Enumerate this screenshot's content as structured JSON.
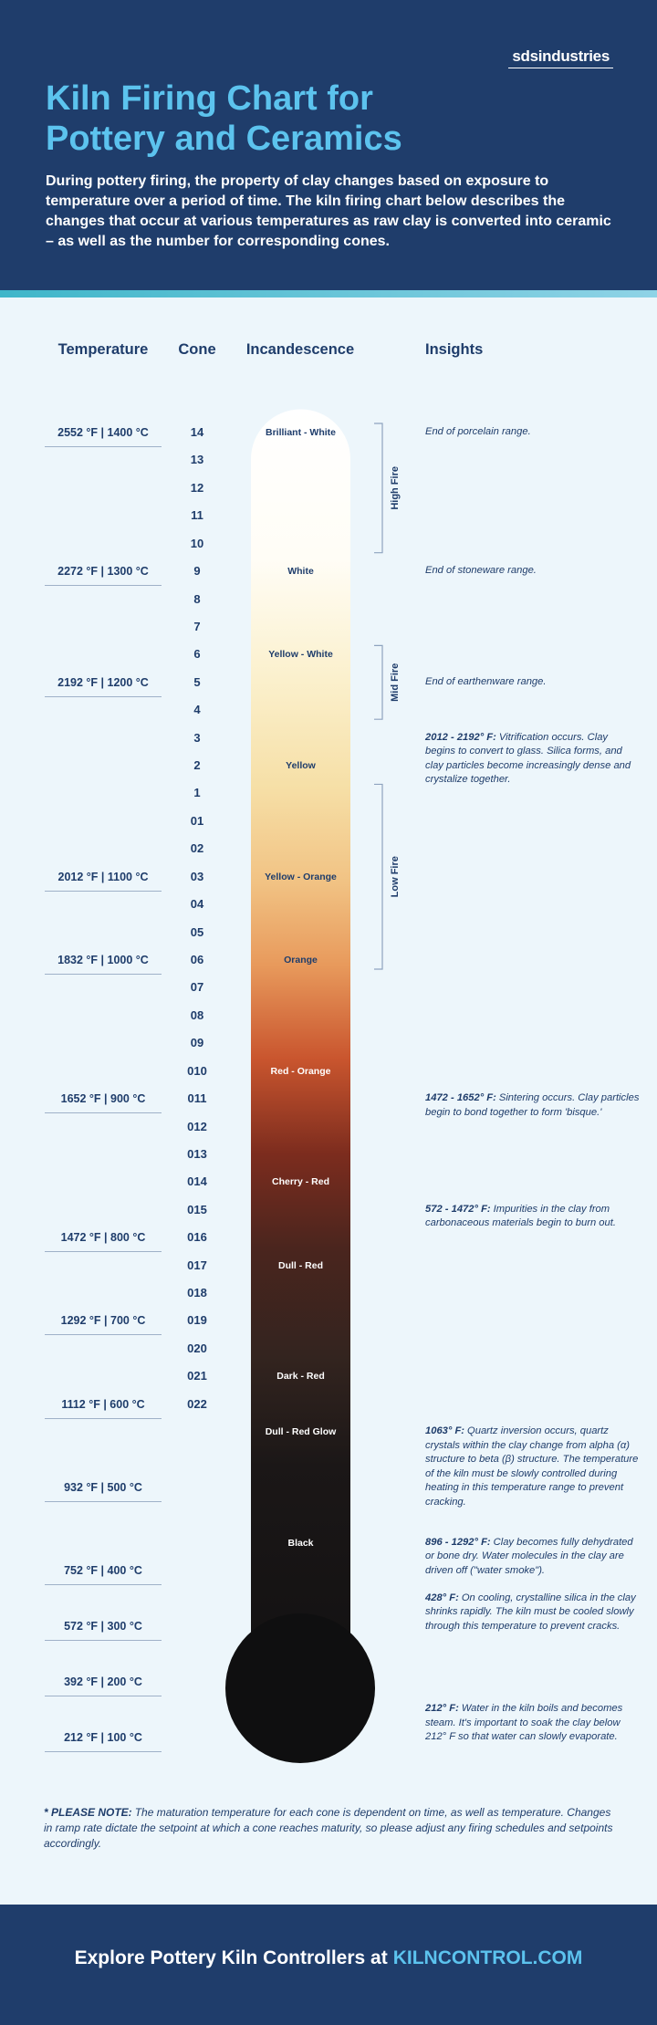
{
  "header": {
    "brand": "sdsindustries",
    "title_lines": [
      "Kiln Firing Chart for",
      "Pottery and Ceramics"
    ],
    "intro": "During pottery firing, the property of clay changes based on exposure to temperature over a period of time. The kiln firing chart below describes the changes that occur at various temperatures as raw clay is converted into ceramic – as well as the number for corresponding cones."
  },
  "columns": [
    "Temperature",
    "Cone",
    "Incandescence",
    "Insights"
  ],
  "rows": [
    {
      "cone": "14",
      "temperature": "2552 °F | 1400 °C",
      "incandescence": "Brilliant - White",
      "insight": "End of porcelain range."
    },
    {
      "cone": "13"
    },
    {
      "cone": "12"
    },
    {
      "cone": "11"
    },
    {
      "cone": "10"
    },
    {
      "cone": "9",
      "temperature": "2272 °F | 1300 °C",
      "incandescence": "White",
      "insight": "End of stoneware range."
    },
    {
      "cone": "8"
    },
    {
      "cone": "7"
    },
    {
      "cone": "6",
      "incandescence": "Yellow - White"
    },
    {
      "cone": "5",
      "temperature": "2192 °F | 1200 °C",
      "insight": "End of earthenware range."
    },
    {
      "cone": "4"
    },
    {
      "cone": "3",
      "insight_lead": "2012 - 2192° F:",
      "insight": "Vitrification occurs. Clay begins to convert to glass. Silica forms, and clay particles become increasingly dense and crystalize together."
    },
    {
      "cone": "2",
      "incandescence": "Yellow"
    },
    {
      "cone": "1"
    },
    {
      "cone": "01"
    },
    {
      "cone": "02"
    },
    {
      "cone": "03",
      "temperature": "2012 °F | 1100 °C",
      "incandescence": "Yellow - Orange"
    },
    {
      "cone": "04"
    },
    {
      "cone": "05"
    },
    {
      "cone": "06",
      "temperature": "1832 °F | 1000 °C",
      "incandescence": "Orange"
    },
    {
      "cone": "07"
    },
    {
      "cone": "08"
    },
    {
      "cone": "09"
    },
    {
      "cone": "010",
      "incandescence": "Red - Orange"
    },
    {
      "cone": "011",
      "temperature": "1652 °F | 900 °C",
      "insight_lead": "1472 - 1652° F:",
      "insight": "Sintering occurs. Clay particles begin to bond together to form 'bisque.'"
    },
    {
      "cone": "012"
    },
    {
      "cone": "013"
    },
    {
      "cone": "014",
      "incandescence": "Cherry - Red"
    },
    {
      "cone": "015",
      "insight_lead": "572 - 1472° F:",
      "insight": "Impurities in the clay from carbonaceous materials begin to burn out."
    },
    {
      "cone": "016",
      "temperature": "1472 °F | 800 °C"
    },
    {
      "cone": "017",
      "incandescence": "Dull - Red"
    },
    {
      "cone": "018"
    },
    {
      "cone": "019",
      "temperature": "1292 °F | 700 °C"
    },
    {
      "cone": "020"
    },
    {
      "cone": "021",
      "incandescence": "Dark - Red"
    },
    {
      "cone": "022",
      "temperature": "1112 °F | 600 °C"
    },
    {
      "incandescence": "Dull - Red Glow",
      "insight_lead": "1063° F:",
      "insight": "Quartz inversion occurs, quartz crystals within the clay change from alpha (α) structure to beta (β) structure. The temperature of the kiln must be slowly controlled during heating in this temperature range to prevent cracking."
    },
    {},
    {
      "temperature": "932 °F | 500 °C"
    },
    {},
    {
      "incandescence": "Black",
      "insight_lead": "896 - 1292° F:",
      "insight": "Clay becomes fully dehydrated or bone dry. Water molecules in the clay are driven off (\"water smoke\")."
    },
    {
      "temperature": "752 °F | 400 °C"
    },
    {
      "insight_lead": "428° F:",
      "insight": "On cooling, crystalline silica in the clay shrinks rapidly. The kiln must be cooled slowly through this temperature to prevent cracks."
    },
    {
      "temperature": "572 °F | 300 °C"
    },
    {},
    {
      "temperature": "392 °F | 200 °C"
    },
    {
      "insight_lead": "212° F:",
      "insight": "Water in the kiln boils and becomes steam. It's important to soak the clay below 212° F so that water can slowly evaporate."
    },
    {
      "temperature": "212 °F | 100 °C"
    }
  ],
  "ranges": [
    {
      "label": "High Fire",
      "first_cone": "14",
      "last_cone": "10"
    },
    {
      "label": "Mid Fire",
      "first_cone": "6",
      "last_cone": "4"
    },
    {
      "label": "Low Fire",
      "first_cone": "1",
      "last_cone": "06"
    }
  ],
  "note_lead": "* PLEASE NOTE:",
  "note": "The maturation temperature for each cone is dependent on time, as well as temperature. Changes in ramp rate dictate the setpoint at which a cone reaches maturity, so please adjust any firing schedules and setpoints accordingly.",
  "footer": {
    "text": "Explore Pottery Kiln Controllers at",
    "link": "KILNCONTROL.COM"
  }
}
